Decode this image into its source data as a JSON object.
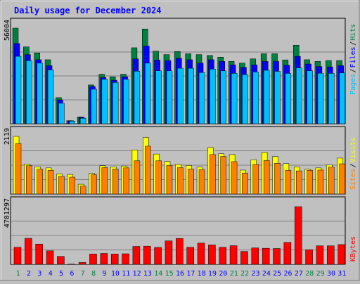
{
  "title": "Daily usage for December 2024",
  "colors": {
    "background": "#c0c0c0",
    "panel": "#c0c0c0",
    "title_text": "#0000ff",
    "hits": "#008040",
    "files": "#0000ff",
    "pages": "#00c0ff",
    "visits": "#ffff00",
    "sites": "#ff8000",
    "kbytes": "#ff0000",
    "weekend_day": "#008040",
    "weekday": "#0000ff",
    "grid": "#808080"
  },
  "chart_data": [
    {
      "type": "bar",
      "name": "hits-files-pages",
      "categories": [
        "1",
        "2",
        "3",
        "4",
        "5",
        "6",
        "7",
        "8",
        "9",
        "10",
        "11",
        "12",
        "13",
        "14",
        "15",
        "16",
        "17",
        "18",
        "19",
        "20",
        "21",
        "22",
        "23",
        "24",
        "25",
        "26",
        "27",
        "28",
        "29",
        "30",
        "31"
      ],
      "weekend_days": [
        "1",
        "7",
        "8",
        "14",
        "15",
        "21",
        "22",
        "28",
        "29"
      ],
      "axis_max_label": "56004",
      "ylim": [
        0,
        56004
      ],
      "legend": {
        "pages": "Pages",
        "sep1": "/",
        "files": "Files",
        "sep2": "/",
        "hits": "Hits"
      },
      "series": [
        {
          "name": "Hits",
          "values": [
            56004,
            45000,
            41500,
            37500,
            15300,
            1800,
            4000,
            22700,
            29000,
            27500,
            29000,
            44500,
            55500,
            42500,
            40500,
            42300,
            41000,
            40500,
            40000,
            39000,
            36500,
            35500,
            38000,
            41000,
            41000,
            37400,
            46000,
            37500,
            36500,
            37000,
            37000
          ]
        },
        {
          "name": "Files",
          "values": [
            47000,
            40500,
            37500,
            34000,
            14000,
            1700,
            3700,
            21800,
            27000,
            25500,
            27500,
            38000,
            45500,
            37300,
            37000,
            38300,
            37500,
            35500,
            37500,
            36500,
            34500,
            33000,
            34500,
            36500,
            36500,
            34300,
            39500,
            35000,
            33500,
            33300,
            34000
          ]
        },
        {
          "name": "Pages",
          "values": [
            39500,
            37000,
            35500,
            31500,
            12000,
            1500,
            3200,
            20200,
            26000,
            24200,
            26000,
            30800,
            35500,
            31000,
            31000,
            32500,
            32500,
            30000,
            32000,
            31000,
            29500,
            28800,
            30300,
            31300,
            30700,
            29500,
            32700,
            31000,
            29600,
            29500,
            29800
          ]
        }
      ]
    },
    {
      "type": "bar",
      "name": "visits-sites",
      "categories": [
        "1",
        "2",
        "3",
        "4",
        "5",
        "6",
        "7",
        "8",
        "9",
        "10",
        "11",
        "12",
        "13",
        "14",
        "15",
        "16",
        "17",
        "18",
        "19",
        "20",
        "21",
        "22",
        "23",
        "24",
        "25",
        "26",
        "27",
        "28",
        "29",
        "30",
        "31"
      ],
      "axis_max_label": "2119",
      "ylim": [
        0,
        2119
      ],
      "legend": {
        "sites": "Sites",
        "sep1": "/",
        "visits": "Visits"
      },
      "series": [
        {
          "name": "Visits",
          "values": [
            2119,
            1100,
            1000,
            960,
            740,
            720,
            360,
            760,
            1040,
            1000,
            1030,
            1620,
            2080,
            1470,
            1200,
            1090,
            1050,
            990,
            1710,
            1480,
            1450,
            880,
            1260,
            1530,
            1380,
            1120,
            1000,
            910,
            960,
            1070,
            1320
          ]
        },
        {
          "name": "Sites",
          "values": [
            1850,
            1040,
            910,
            870,
            650,
            620,
            290,
            710,
            970,
            920,
            960,
            1220,
            1760,
            1220,
            1050,
            970,
            920,
            900,
            1450,
            1380,
            1190,
            770,
            1090,
            1230,
            1130,
            870,
            850,
            870,
            880,
            990,
            1110
          ]
        }
      ]
    },
    {
      "type": "bar",
      "name": "kbytes",
      "categories": [
        "1",
        "2",
        "3",
        "4",
        "5",
        "6",
        "7",
        "8",
        "9",
        "10",
        "11",
        "12",
        "13",
        "14",
        "15",
        "16",
        "17",
        "18",
        "19",
        "20",
        "21",
        "22",
        "23",
        "24",
        "25",
        "26",
        "27",
        "28",
        "29",
        "30",
        "31"
      ],
      "axis_max_label": "4701297",
      "ylim": [
        0,
        4701297
      ],
      "legend": {
        "kbytes": "KBytes"
      },
      "series": [
        {
          "name": "KBytes",
          "values": [
            1390000,
            2120000,
            1650000,
            1100000,
            640000,
            40000,
            150000,
            840000,
            890000,
            840000,
            860000,
            1460000,
            1480000,
            1380000,
            1910000,
            2110000,
            1390000,
            1730000,
            1580000,
            1390000,
            1520000,
            1050000,
            1340000,
            1310000,
            1290000,
            1790000,
            4701297,
            1190000,
            1510000,
            1510000,
            1610000
          ]
        }
      ]
    }
  ]
}
